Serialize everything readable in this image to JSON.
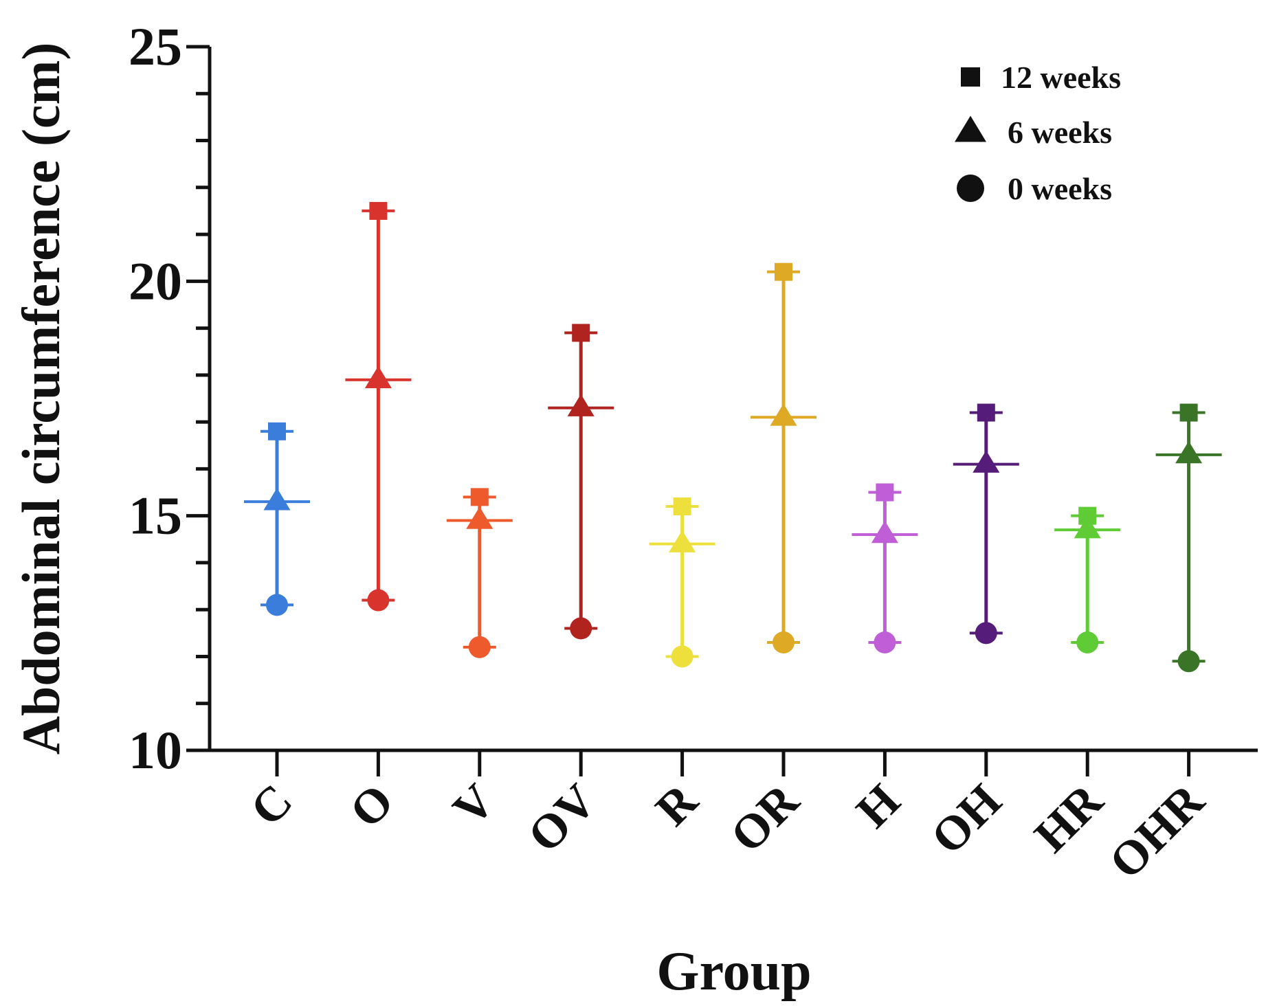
{
  "chart_data": {
    "type": "scatter",
    "title": "",
    "xlabel": "Group",
    "ylabel": "Abdominal circumference (cm)",
    "ylim": [
      10,
      25
    ],
    "yticks": [
      10,
      15,
      20,
      25
    ],
    "y_minor_step": 1,
    "grid": false,
    "legend_position": "top-right",
    "categories": [
      "C",
      "O",
      "V",
      "OV",
      "R",
      "OR",
      "H",
      "OH",
      "HR",
      "OHR"
    ],
    "colors": [
      "#3a7ddb",
      "#d8332c",
      "#ef5a2c",
      "#b0231f",
      "#ede03d",
      "#deaa26",
      "#bf5ed6",
      "#551d79",
      "#5fcb35",
      "#3a7427"
    ],
    "series": [
      {
        "name": "12 weeks",
        "marker": "square",
        "values": [
          16.8,
          21.5,
          15.4,
          18.9,
          15.2,
          20.2,
          15.5,
          17.2,
          15.0,
          17.2
        ]
      },
      {
        "name": "6 weeks",
        "marker": "triangle",
        "values": [
          15.3,
          17.9,
          14.9,
          17.3,
          14.4,
          17.1,
          14.6,
          16.1,
          14.7,
          16.3
        ]
      },
      {
        "name": "0 weeks",
        "marker": "circle",
        "values": [
          13.1,
          13.2,
          12.2,
          12.6,
          12.0,
          12.3,
          12.3,
          12.5,
          12.3,
          11.9
        ]
      }
    ]
  }
}
